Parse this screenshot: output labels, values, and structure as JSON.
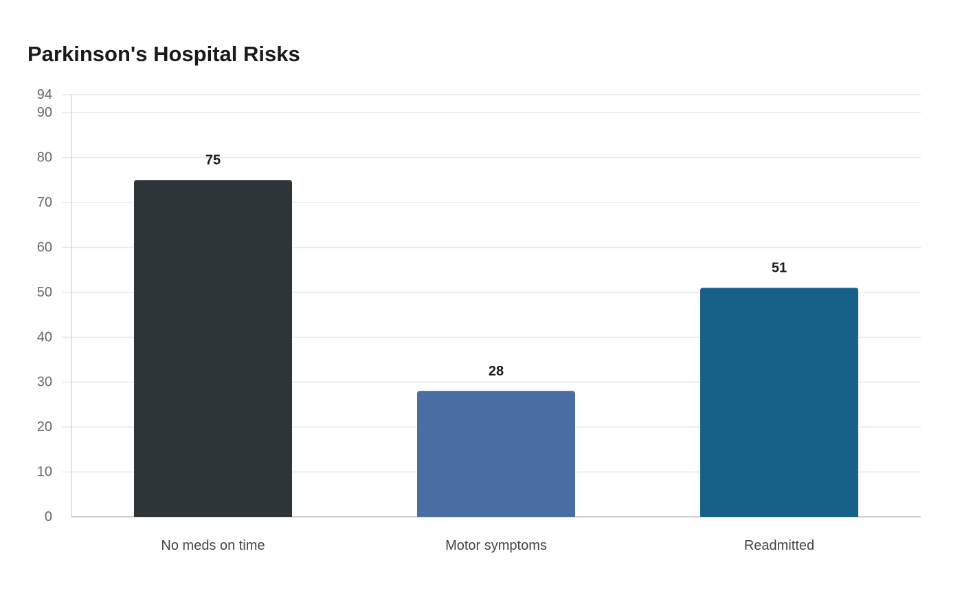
{
  "chart_data": {
    "type": "bar",
    "title": "Parkinson's Hospital Risks",
    "xlabel": "",
    "ylabel": "",
    "categories": [
      "No meds on time",
      "Motor symptoms",
      "Readmitted"
    ],
    "values": [
      75,
      28,
      51
    ],
    "ylim": [
      0,
      94
    ],
    "yticks": [
      0,
      10,
      20,
      30,
      40,
      50,
      60,
      70,
      80,
      90,
      94
    ],
    "grid": true,
    "legend": "none",
    "colors": [
      "#2e3538",
      "#4a6da3",
      "#176189"
    ]
  }
}
